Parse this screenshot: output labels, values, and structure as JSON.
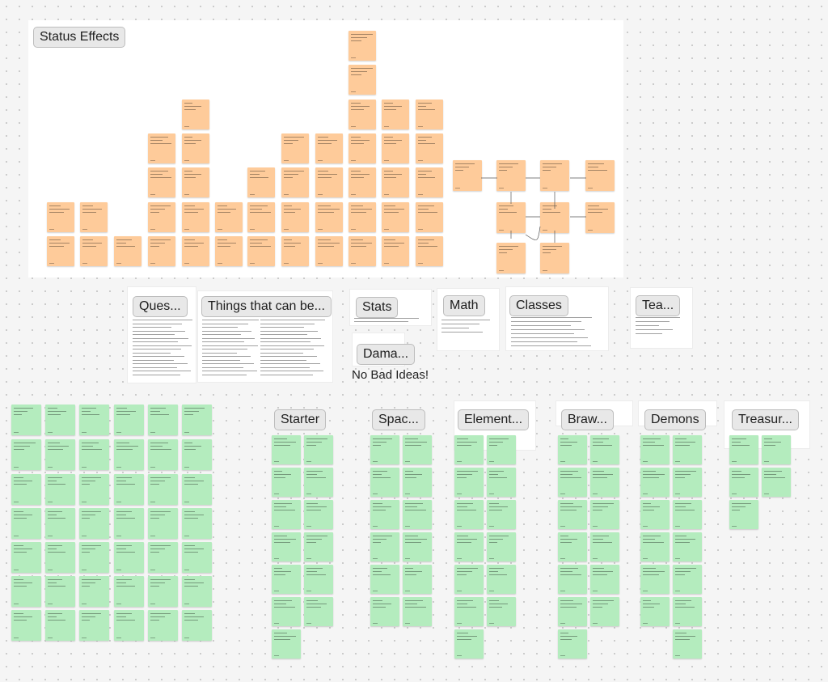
{
  "canvas": {
    "background": "#f5f5f5",
    "dot_color": "#c8c8c8"
  },
  "colors": {
    "orange_sticky": "#fecb9a",
    "green_sticky": "#b4ecbe",
    "label_bg": "#e8e8e8"
  },
  "sections": {
    "status_effects": "Status Effects",
    "questions": "Ques...",
    "things": "Things that can be...",
    "stats": "Stats",
    "math": "Math",
    "classes": "Classes",
    "team": "Tea...",
    "damage": "Dama...",
    "starter": "Starter",
    "space": "Spac...",
    "element": "Element...",
    "brawl": "Braw...",
    "demons": "Demons",
    "treasure": "Treasur..."
  },
  "no_bad_ideas": "No Bad Ideas!"
}
